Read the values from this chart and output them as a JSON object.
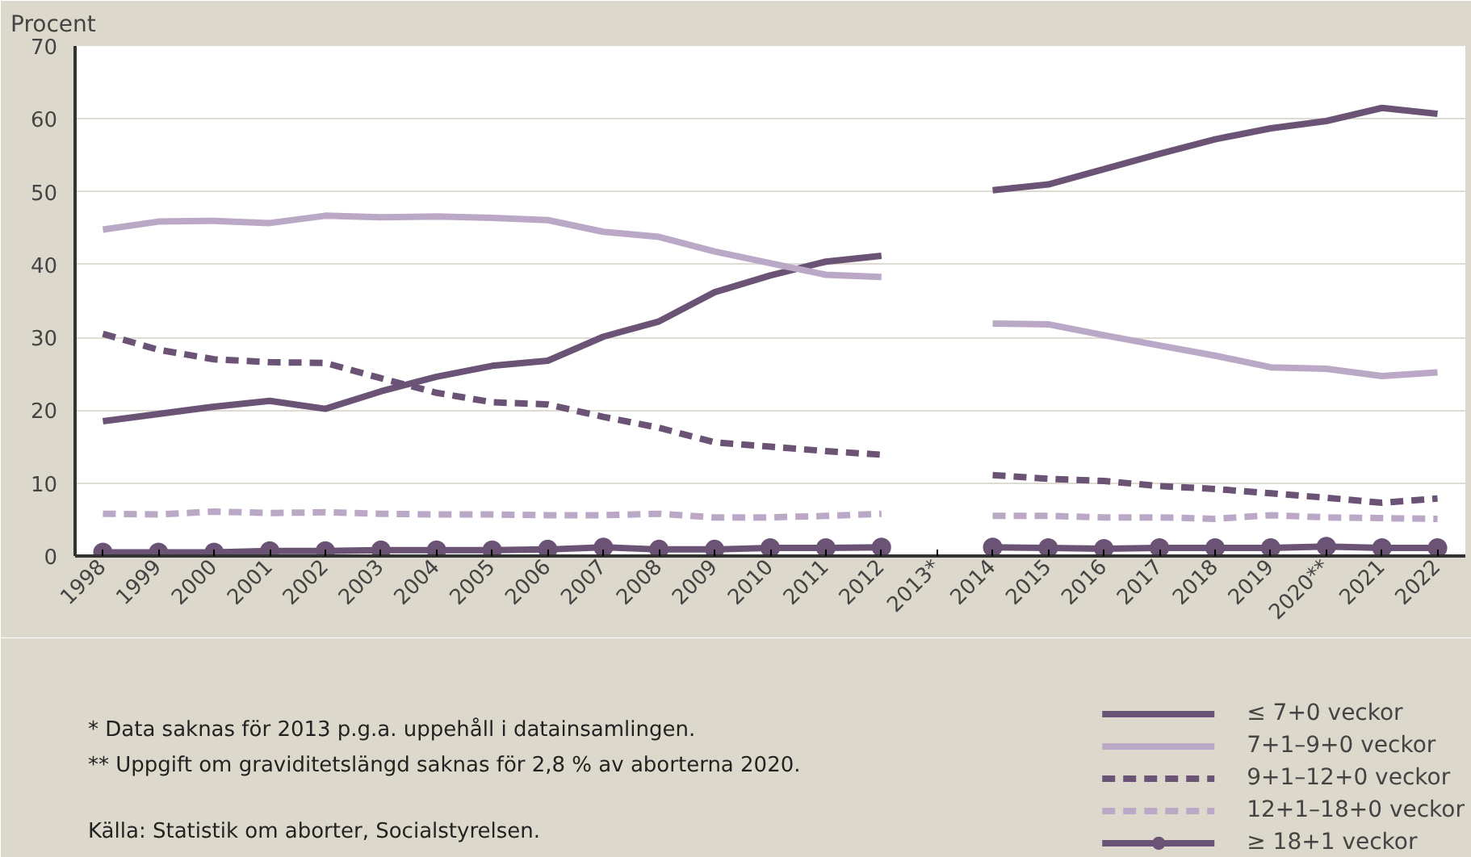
{
  "chart_data": {
    "type": "line",
    "ylabel": "Procent",
    "categories": [
      "1998",
      "1999",
      "2000",
      "2001",
      "2002",
      "2003",
      "2004",
      "2005",
      "2006",
      "2007",
      "2008",
      "2009",
      "2010",
      "2011",
      "2012",
      "2013*",
      "2014",
      "2015",
      "2016",
      "2017",
      "2018",
      "2019",
      "2020**",
      "2021",
      "2022"
    ],
    "ylim": [
      0,
      70
    ],
    "yticks": [
      0,
      10,
      20,
      30,
      40,
      50,
      60,
      70
    ],
    "grid": "y",
    "legend": "bottom right",
    "series": [
      {
        "name": "≤ 7+0 veckor",
        "color": "#6b5376",
        "line_style": "solid",
        "marker": "none",
        "values": [
          18.5,
          19.5,
          20.5,
          21.3,
          20.2,
          22.6,
          24.6,
          26.1,
          26.8,
          30.1,
          32.2,
          36.2,
          38.5,
          40.4,
          41.2,
          null,
          50.2,
          51,
          53.1,
          55.2,
          57.2,
          58.7,
          59.7,
          61.5,
          60.7
        ]
      },
      {
        "name": "7+1–9+0 veckor",
        "color": "#bba8c6",
        "line_style": "solid",
        "marker": "none",
        "values": [
          44.8,
          45.9,
          46,
          45.7,
          46.7,
          46.5,
          46.6,
          46.4,
          46.1,
          44.5,
          43.8,
          41.8,
          40.2,
          38.6,
          38.3,
          null,
          31.9,
          31.8,
          30.3,
          28.9,
          27.5,
          25.9,
          25.7,
          24.7,
          25.2
        ]
      },
      {
        "name": "9+1–12+0 veckor",
        "color": "#6b5376",
        "line_style": "dashed",
        "marker": "none",
        "values": [
          30.5,
          28.3,
          27,
          26.6,
          26.5,
          24.4,
          22.4,
          21.1,
          20.8,
          19.1,
          17.6,
          15.6,
          15,
          14.4,
          13.9,
          null,
          11.1,
          10.6,
          10.3,
          9.6,
          9.2,
          8.6,
          8,
          7.3,
          7.9
        ]
      },
      {
        "name": "12+1–18+0 veckor",
        "color": "#bba8c6",
        "line_style": "dashed",
        "marker": "none",
        "values": [
          5.8,
          5.7,
          6.1,
          5.9,
          6,
          5.8,
          5.7,
          5.7,
          5.6,
          5.6,
          5.8,
          5.3,
          5.3,
          5.5,
          5.8,
          null,
          5.5,
          5.5,
          5.3,
          5.3,
          5.1,
          5.6,
          5.3,
          5.2,
          5.1
        ]
      },
      {
        "name": "≥ 18+1 veckor",
        "color": "#6b5376",
        "line_style": "solid",
        "marker": "circle",
        "values": [
          0.5,
          0.5,
          0.5,
          0.7,
          0.7,
          0.8,
          0.8,
          0.8,
          0.9,
          1.2,
          0.9,
          0.9,
          1.1,
          1.1,
          1.2,
          null,
          1.2,
          1.1,
          1,
          1.1,
          1.1,
          1.1,
          1.3,
          1.1,
          1.1
        ]
      }
    ],
    "annotations": [
      "* Data saknas för 2013 p.g.a. uppehåll i datainsamlingen.",
      "** Uppgift om graviditetslängd saknas för 2,8 % av aborterna 2020.",
      "Källa: Statistik om aborter, Socialstyrelsen."
    ]
  }
}
